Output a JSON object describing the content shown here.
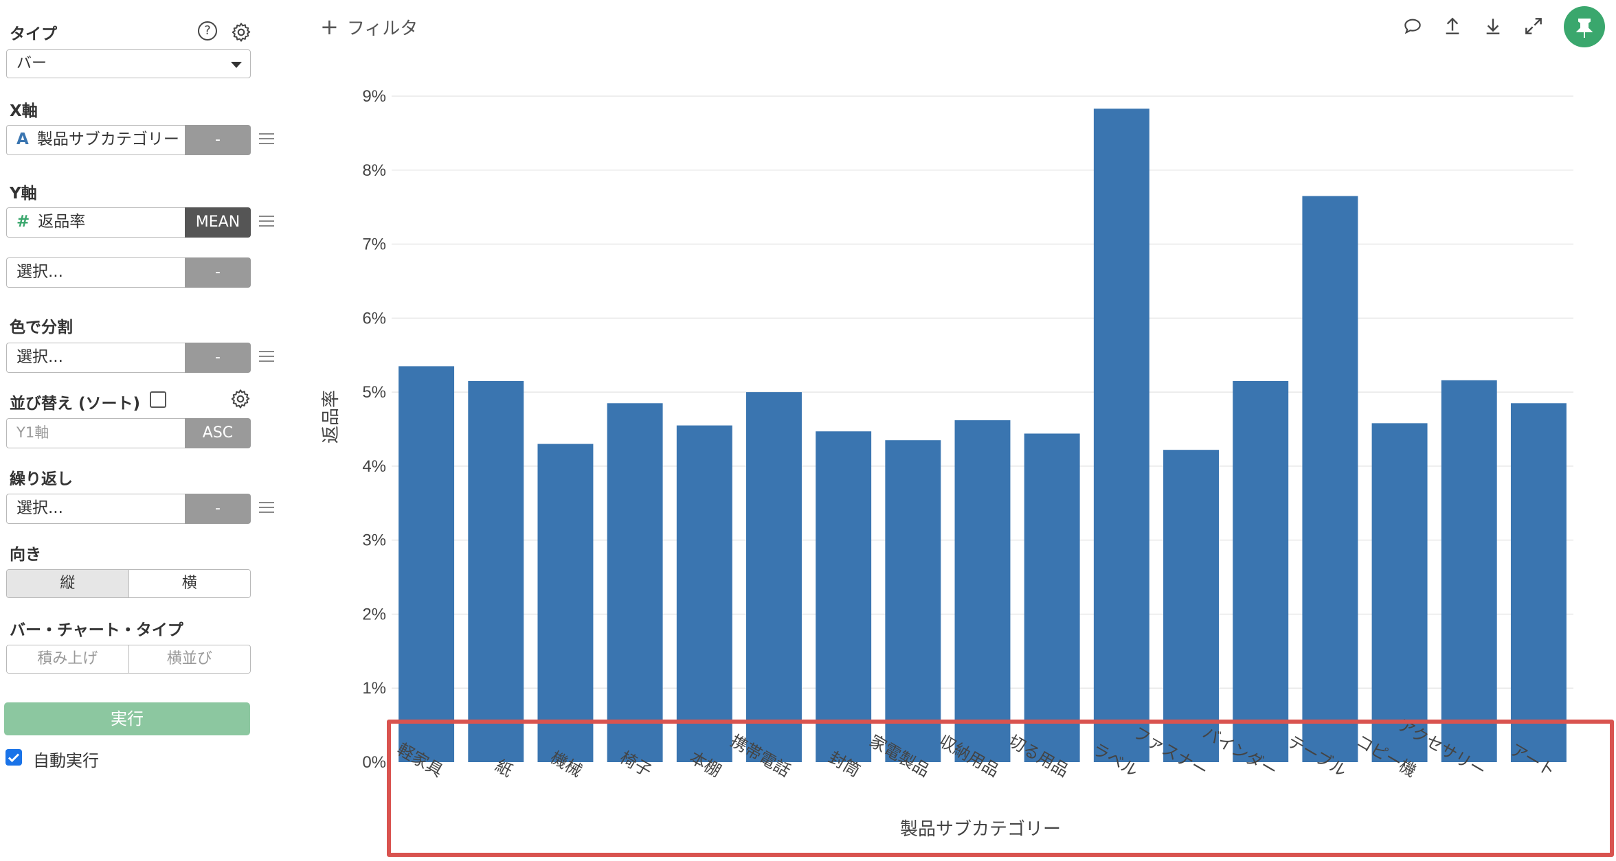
{
  "sidebar": {
    "type_label": "タイプ",
    "type_value": "バー",
    "x_label": "X軸",
    "x_field": "製品サブカテゴリー",
    "x_field_icon": "A",
    "x_agg": "-",
    "y_label": "Y軸",
    "y_field": "返品率",
    "y_field_icon": "#",
    "y_agg": "MEAN",
    "y2_placeholder": "選択...",
    "y2_agg": "-",
    "color_label": "色で分割",
    "color_placeholder": "選択...",
    "color_agg": "-",
    "sort_label": "並び替え (ソート)",
    "sort_field_placeholder": "Y1軸",
    "sort_order": "ASC",
    "repeat_label": "繰り返し",
    "repeat_placeholder": "選択...",
    "repeat_agg": "-",
    "orientation_label": "向き",
    "orientation_options": [
      "縦",
      "横"
    ],
    "bar_type_label": "バー・チャート・タイプ",
    "bar_type_options": [
      "積み上げ",
      "横並び"
    ],
    "run_button": "実行",
    "auto_run_label": "自動実行",
    "help_icon_glyph": "?"
  },
  "topbar": {
    "filter_label": "フィルタ",
    "plus_glyph": "+"
  },
  "colors": {
    "bar": "#3a75b0",
    "run": "#8cc7a0",
    "pin": "#3aa76d",
    "highlight": "#d9534f"
  },
  "chart_data": {
    "type": "bar",
    "categories": [
      "軽家具",
      "紙",
      "機械",
      "椅子",
      "本棚",
      "携帯電話",
      "封筒",
      "家電製品",
      "収納用品",
      "切る用品",
      "ラベル",
      "ファスナー",
      "バインダー",
      "テーブル",
      "コピー機",
      "アクセサリー",
      "アート"
    ],
    "values": [
      5.35,
      5.15,
      4.3,
      4.85,
      4.55,
      5.0,
      4.47,
      4.35,
      4.62,
      4.44,
      8.83,
      4.22,
      5.15,
      7.65,
      4.58,
      5.16,
      4.85
    ],
    "xlabel": "製品サブカテゴリー",
    "ylabel": "返品率",
    "ylim": [
      0,
      9
    ],
    "yticks": [
      "0%",
      "1%",
      "2%",
      "3%",
      "4%",
      "5%",
      "6%",
      "7%",
      "8%",
      "9%"
    ],
    "grid": true
  }
}
